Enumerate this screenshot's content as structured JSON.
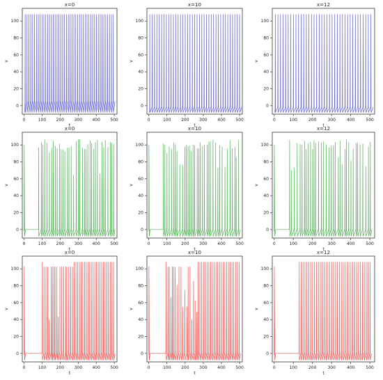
{
  "chart_data": [
    {
      "type": "line",
      "title": "x=0",
      "xlabel": "t",
      "ylabel": "v",
      "xlim": [
        -10,
        515
      ],
      "ylim": [
        -10,
        115
      ],
      "xticks": [
        0,
        100,
        200,
        300,
        400,
        500
      ],
      "yticks": [
        0,
        20,
        40,
        60,
        80,
        100
      ],
      "color": "#5b5bd6",
      "pattern": "regular",
      "start": 5,
      "period": 10.4,
      "end": 500,
      "peak": 108,
      "trough": -8,
      "sub": 5
    },
    {
      "type": "line",
      "title": "x=10",
      "xlabel": "t",
      "ylabel": "v",
      "xlim": [
        -10,
        515
      ],
      "ylim": [
        -10,
        115
      ],
      "xticks": [
        0,
        100,
        200,
        300,
        400,
        500
      ],
      "yticks": [
        0,
        20,
        40,
        60,
        80,
        100
      ],
      "color": "#5b5bd6",
      "pattern": "regular",
      "start": 5,
      "period": 13.0,
      "end": 500,
      "peak": 108,
      "trough": -8,
      "sub": -2
    },
    {
      "type": "line",
      "title": "x=12",
      "xlabel": "t",
      "ylabel": "v",
      "xlim": [
        -10,
        525
      ],
      "ylim": [
        -10,
        115
      ],
      "xticks": [
        0,
        100,
        200,
        300,
        400,
        500
      ],
      "yticks": [
        0,
        20,
        40,
        60,
        80,
        100
      ],
      "color": "#5b5bd6",
      "pattern": "regular",
      "start": 5,
      "period": 13.5,
      "end": 510,
      "peak": 108,
      "trough": -8,
      "sub": -2
    },
    {
      "type": "line",
      "title": "x=0",
      "xlabel": "t",
      "ylabel": "v",
      "xlim": [
        -10,
        515
      ],
      "ylim": [
        -10,
        115
      ],
      "xticks": [
        0,
        100,
        200,
        300,
        400,
        500
      ],
      "yticks": [
        0,
        20,
        40,
        60,
        80,
        100
      ],
      "color": "#4caf50",
      "pattern": "irregular",
      "start": 80,
      "period": 11.0,
      "end": 500,
      "peak": 105,
      "trough": -8,
      "sub": 0,
      "seed": 3
    },
    {
      "type": "line",
      "title": "x=10",
      "xlabel": "t",
      "ylabel": "v",
      "xlim": [
        -10,
        515
      ],
      "ylim": [
        -10,
        115
      ],
      "xticks": [
        0,
        100,
        200,
        300,
        400,
        500
      ],
      "yticks": [
        0,
        20,
        40,
        60,
        80,
        100
      ],
      "color": "#4caf50",
      "pattern": "irregular",
      "start": 80,
      "period": 11.5,
      "end": 500,
      "peak": 105,
      "trough": -8,
      "sub": 0,
      "seed": 7
    },
    {
      "type": "line",
      "title": "x=12",
      "xlabel": "t",
      "ylabel": "v",
      "xlim": [
        -10,
        525
      ],
      "ylim": [
        -10,
        115
      ],
      "xticks": [
        0,
        100,
        200,
        300,
        400,
        500
      ],
      "yticks": [
        0,
        20,
        40,
        60,
        80,
        100
      ],
      "color": "#4caf50",
      "pattern": "irregular",
      "start": 80,
      "period": 12.0,
      "end": 510,
      "peak": 105,
      "trough": -8,
      "sub": 0,
      "seed": 11
    },
    {
      "type": "line",
      "title": "x=0",
      "xlabel": "t",
      "ylabel": "v",
      "xlim": [
        -10,
        515
      ],
      "ylim": [
        -10,
        115
      ],
      "xticks": [
        0,
        100,
        200,
        300,
        400,
        500
      ],
      "yticks": [
        0,
        20,
        40,
        60,
        80,
        100
      ],
      "color": "#ef5350",
      "pattern": "burst",
      "start": 100,
      "period": 9.5,
      "end": 500,
      "peak": 108,
      "trough": -8,
      "sub": 0,
      "seed": 5
    },
    {
      "type": "line",
      "title": "x=10",
      "xlabel": "t",
      "ylabel": "v",
      "xlim": [
        -10,
        515
      ],
      "ylim": [
        -10,
        115
      ],
      "xticks": [
        0,
        100,
        200,
        300,
        400,
        500
      ],
      "yticks": [
        0,
        20,
        40,
        60,
        80,
        100
      ],
      "color": "#ef5350",
      "pattern": "burst",
      "start": 95,
      "period": 9.8,
      "end": 500,
      "peak": 108,
      "trough": -8,
      "sub": 0,
      "seed": 9
    },
    {
      "type": "line",
      "title": "x=12",
      "xlabel": "t",
      "ylabel": "v",
      "xlim": [
        -10,
        525
      ],
      "ylim": [
        -10,
        115
      ],
      "xticks": [
        0,
        100,
        200,
        300,
        400,
        500
      ],
      "yticks": [
        0,
        20,
        40,
        60,
        80,
        100
      ],
      "color": "#ef5350",
      "pattern": "regular",
      "start": 130,
      "period": 10.0,
      "end": 510,
      "peak": 108,
      "trough": -8,
      "sub": 0
    }
  ]
}
